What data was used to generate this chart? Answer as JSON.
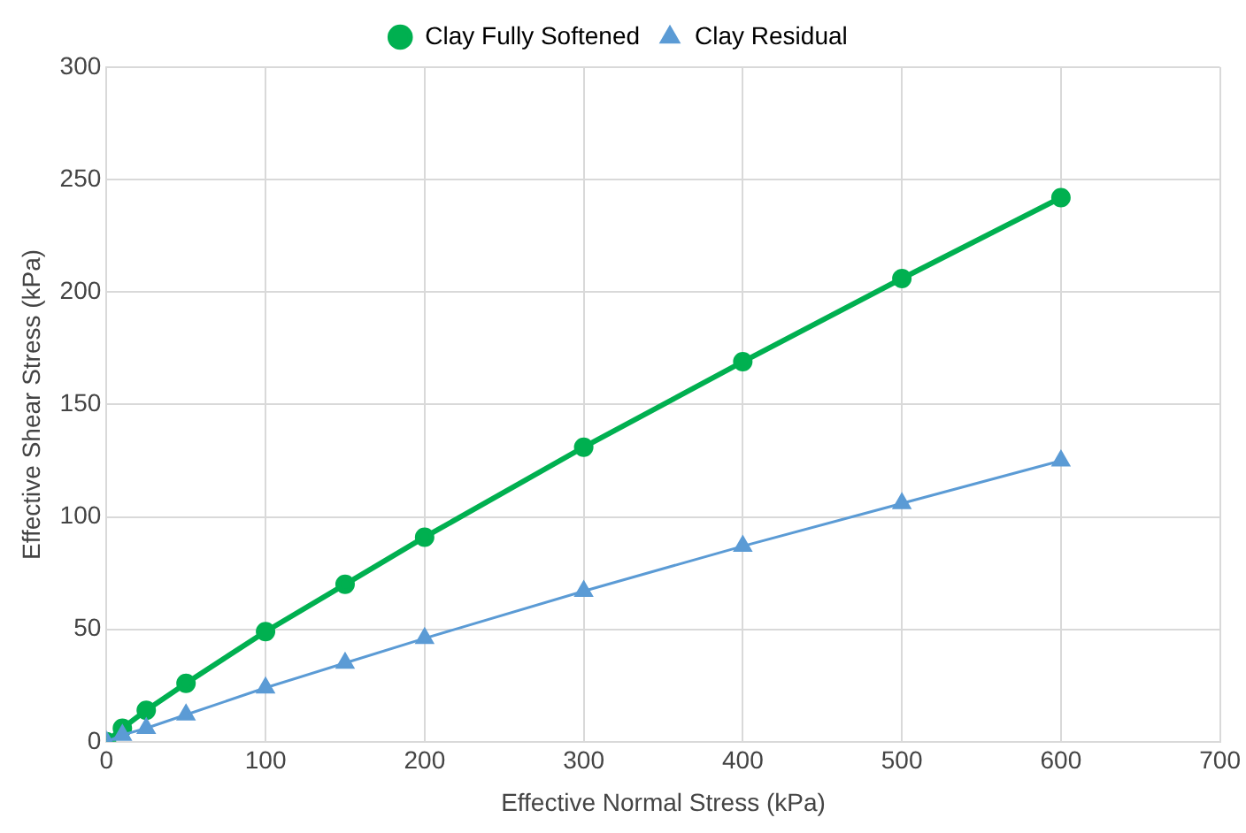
{
  "chart_data": {
    "type": "line",
    "xlabel": "Effective Normal Stress (kPa)",
    "ylabel": "Effective Shear Stress (kPa)",
    "x": [
      0,
      10,
      25,
      50,
      100,
      150,
      200,
      300,
      400,
      500,
      600
    ],
    "series": [
      {
        "name": "Clay Fully Softened",
        "color": "#00b050",
        "values": [
          0,
          6,
          14,
          26,
          49,
          70,
          91,
          131,
          169,
          206,
          242
        ],
        "marker": "circle"
      },
      {
        "name": "Clay Residual",
        "color": "#5b9bd5",
        "values": [
          0,
          3,
          6,
          12,
          24,
          35,
          46,
          67,
          87,
          106,
          125
        ],
        "marker": "triangle"
      }
    ],
    "xlim": [
      0,
      700
    ],
    "xticks": [
      0,
      100,
      200,
      300,
      400,
      500,
      600,
      700
    ],
    "ylim": [
      0,
      300
    ],
    "yticks": [
      0,
      50,
      100,
      150,
      200,
      250,
      300
    ],
    "grid": true,
    "legend": "top"
  }
}
